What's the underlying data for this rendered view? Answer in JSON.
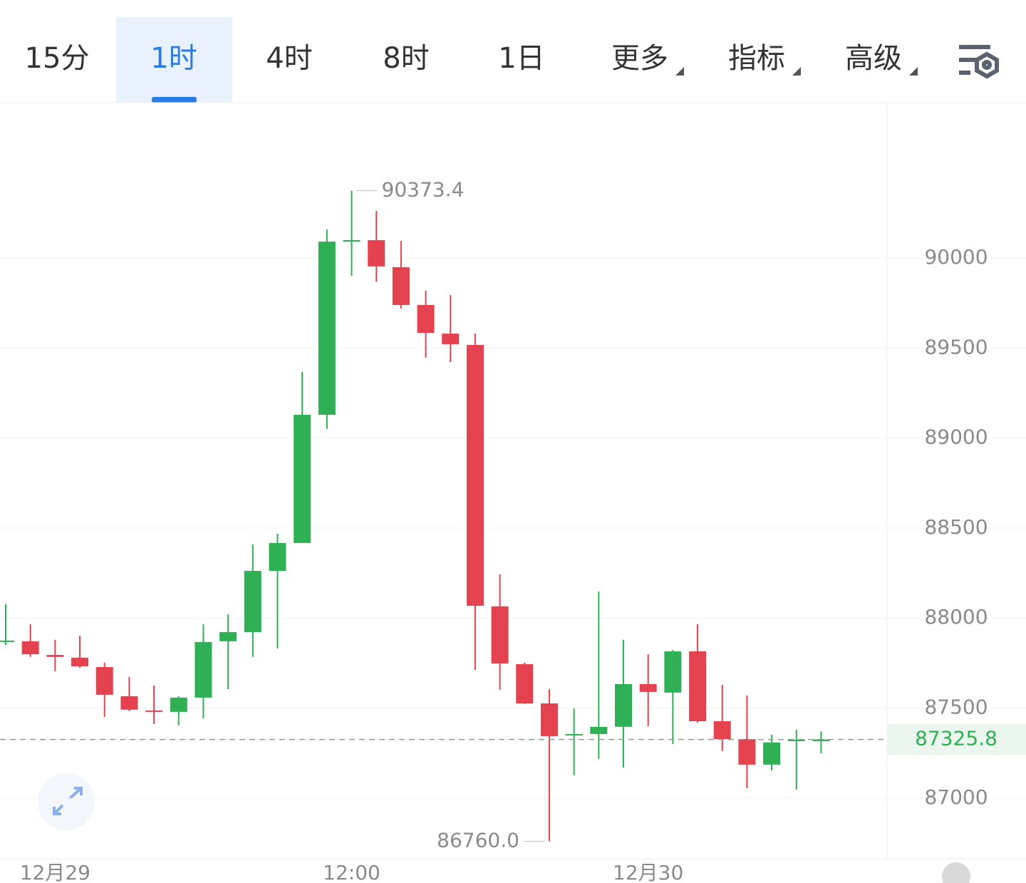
{
  "tabs": [
    "15分",
    "1时",
    "4时",
    "8时",
    "1日",
    "更多",
    "指标",
    "高级"
  ],
  "selected_tab": 1,
  "chart_data": {
    "type": "candlestick",
    "categories": [
      null,
      null,
      "12月29",
      null,
      null,
      null,
      null,
      null,
      null,
      null,
      null,
      null,
      null,
      null,
      "12:00",
      null,
      null,
      null,
      null,
      null,
      null,
      null,
      null,
      null,
      null,
      null,
      "12月30",
      null,
      null,
      null,
      null,
      null,
      null,
      null
    ],
    "open": [
      87867,
      87871,
      87795,
      87780,
      87728,
      87566,
      87487,
      87479,
      87558,
      87871,
      87922,
      88262,
      88417,
      89129,
      90091,
      90099,
      89949,
      89739,
      89580,
      89517,
      88065,
      87744,
      87526,
      87348,
      87356,
      87396,
      87633,
      87586,
      87815,
      87427,
      87328,
      87186,
      87316,
      87316
    ],
    "high": [
      88076,
      87966,
      87879,
      87902,
      87752,
      87673,
      87625,
      87566,
      87966,
      88021,
      88409,
      88468,
      89367,
      90158,
      90373.4,
      90261,
      90095,
      89818,
      89794,
      89580,
      88243,
      87752,
      87605,
      87499,
      88148,
      87879,
      87799,
      87823,
      87966,
      87629,
      87570,
      87352,
      87380,
      87372
    ],
    "low": [
      87851,
      87784,
      87704,
      87724,
      87451,
      87483,
      87411,
      87404,
      87443,
      87605,
      87784,
      87831,
      88417,
      89050,
      89901,
      89869,
      89719,
      89446,
      89422,
      87712,
      87601,
      87522,
      86760,
      87127,
      87218,
      87170,
      87400,
      87301,
      87419,
      87261,
      87055,
      87154,
      87047,
      87249
    ],
    "close": [
      87875,
      87799,
      87784,
      87732,
      87574,
      87491,
      87479,
      87558,
      87867,
      87922,
      88262,
      88417,
      89129,
      90091,
      90099,
      89953,
      89739,
      89584,
      89521,
      88068,
      87748,
      87526,
      87344,
      87356,
      87396,
      87633,
      87590,
      87815,
      87427,
      87328,
      87186,
      87309,
      87324,
      87325.8
    ],
    "up_color": "#2fb055",
    "down_color": "#e4424f",
    "ylim": [
      86663,
      90859
    ],
    "yticks": [
      87000,
      87500,
      88000,
      88500,
      89000,
      89500,
      90000
    ],
    "grid": true,
    "high_label": 90373.4,
    "low_label": {
      "value": 86760,
      "label": "86760.0"
    },
    "last_price": 87325.8
  }
}
